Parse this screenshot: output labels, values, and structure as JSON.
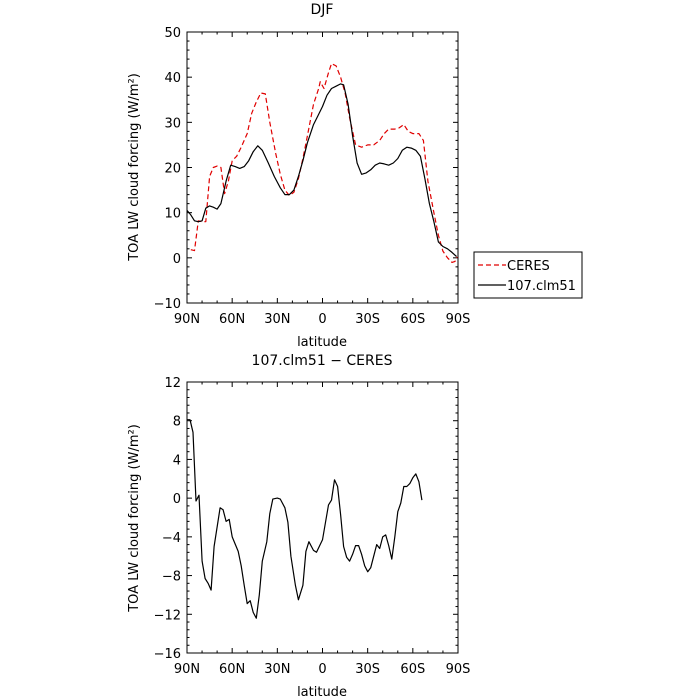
{
  "chart_data": [
    {
      "type": "line",
      "title": "DJF",
      "xlabel": "latitude",
      "ylabel": "TOA LW cloud forcing (W/m²)",
      "xlim": [
        90,
        -90
      ],
      "ylim": [
        -10,
        50
      ],
      "xticks": [
        90,
        60,
        30,
        0,
        -30,
        -60,
        -90
      ],
      "xtick_labels": [
        "90N",
        "60N",
        "30N",
        "0",
        "30S",
        "60S",
        "90S"
      ],
      "yticks": [
        -10,
        0,
        10,
        20,
        30,
        40,
        50
      ],
      "ytick_labels": [
        "−10",
        "0",
        "10",
        "20",
        "30",
        "40",
        "50"
      ],
      "legend": {
        "placement": "right-bottom"
      },
      "series": [
        {
          "name": "CERES",
          "color": "#e00000",
          "dash": "dashed",
          "points": [
            [
              87.5,
              1.8
            ],
            [
              85,
              1.6
            ],
            [
              82.5,
              8.2
            ],
            [
              80,
              8
            ],
            [
              77.5,
              8
            ],
            [
              75,
              18
            ],
            [
              72.5,
              20
            ],
            [
              70,
              20.3
            ],
            [
              67.5,
              20
            ],
            [
              65,
              14.2
            ],
            [
              62.5,
              17
            ],
            [
              60,
              21.5
            ],
            [
              57,
              22.5
            ],
            [
              54,
              24.5
            ],
            [
              50,
              27.5
            ],
            [
              47,
              32
            ],
            [
              44,
              34.5
            ],
            [
              41,
              36.5
            ],
            [
              38,
              36.3
            ],
            [
              35,
              30
            ],
            [
              31,
              23
            ],
            [
              28,
              18.5
            ],
            [
              25,
              15
            ],
            [
              22,
              13.8
            ],
            [
              19,
              14.5
            ],
            [
              16,
              17.5
            ],
            [
              13,
              22
            ],
            [
              10,
              27
            ],
            [
              6,
              34
            ],
            [
              2.5,
              37.5
            ],
            [
              1.5,
              39
            ],
            [
              -1,
              37.5
            ],
            [
              -4,
              41
            ],
            [
              -6,
              43
            ],
            [
              -9,
              42.5
            ],
            [
              -12,
              40
            ],
            [
              -15,
              36.5
            ],
            [
              -18,
              31
            ],
            [
              -22,
              25
            ],
            [
              -26,
              24.5
            ],
            [
              -30,
              25
            ],
            [
              -34,
              25
            ],
            [
              -38,
              26
            ],
            [
              -41,
              27.5
            ],
            [
              -44,
              28.5
            ],
            [
              -48,
              28.5
            ],
            [
              -51,
              28.8
            ],
            [
              -54,
              29.5
            ],
            [
              -57,
              28
            ],
            [
              -60,
              27.5
            ],
            [
              -64,
              27.5
            ],
            [
              -67,
              26
            ],
            [
              -70,
              17
            ],
            [
              -74,
              10
            ],
            [
              -77,
              5
            ],
            [
              -80,
              1.5
            ],
            [
              -83,
              0
            ],
            [
              -86,
              -1
            ],
            [
              -88,
              -0.8
            ],
            [
              -89.5,
              0.2
            ]
          ]
        },
        {
          "name": "107.clm51",
          "color": "#000000",
          "dash": "solid",
          "points": [
            [
              90,
              10.5
            ],
            [
              87.5,
              9.5
            ],
            [
              85,
              8.2
            ],
            [
              82.5,
              8
            ],
            [
              80,
              8.2
            ],
            [
              77.5,
              11
            ],
            [
              75,
              11.5
            ],
            [
              72.5,
              11.2
            ],
            [
              70,
              10.8
            ],
            [
              67.5,
              12
            ],
            [
              64,
              17
            ],
            [
              61,
              20.5
            ],
            [
              58,
              20.2
            ],
            [
              55,
              19.8
            ],
            [
              52,
              20.2
            ],
            [
              49,
              21.5
            ],
            [
              46,
              23.5
            ],
            [
              43,
              24.8
            ],
            [
              40,
              23.8
            ],
            [
              36,
              21
            ],
            [
              32,
              18
            ],
            [
              28,
              15.5
            ],
            [
              25,
              14
            ],
            [
              22,
              14
            ],
            [
              19,
              15
            ],
            [
              16,
              18
            ],
            [
              13,
              21.5
            ],
            [
              10,
              25.5
            ],
            [
              6,
              29.5
            ],
            [
              3,
              31.5
            ],
            [
              0,
              33.5
            ],
            [
              -3,
              36
            ],
            [
              -6,
              37.5
            ],
            [
              -9,
              38
            ],
            [
              -12,
              38.5
            ],
            [
              -14,
              38.3
            ],
            [
              -17,
              34
            ],
            [
              -20,
              27
            ],
            [
              -23,
              21
            ],
            [
              -26,
              18.5
            ],
            [
              -29,
              18.8
            ],
            [
              -32,
              19.5
            ],
            [
              -35,
              20.5
            ],
            [
              -38,
              21
            ],
            [
              -41,
              20.8
            ],
            [
              -44,
              20.5
            ],
            [
              -47,
              21
            ],
            [
              -50,
              22
            ],
            [
              -53,
              23.8
            ],
            [
              -56,
              24.5
            ],
            [
              -59,
              24.3
            ],
            [
              -62,
              23.8
            ],
            [
              -65,
              22.5
            ],
            [
              -68,
              17.5
            ],
            [
              -71,
              12
            ],
            [
              -74,
              8
            ],
            [
              -77,
              3.5
            ],
            [
              -80,
              2.5
            ],
            [
              -83,
              2
            ],
            [
              -86,
              1.2
            ],
            [
              -89,
              0.3
            ]
          ]
        }
      ]
    },
    {
      "type": "line",
      "title": "107.clm51 − CERES",
      "xlabel": "latitude",
      "ylabel": "TOA LW cloud forcing (W/m²)",
      "xlim": [
        90,
        -90
      ],
      "ylim": [
        -16,
        12
      ],
      "xticks": [
        90,
        60,
        30,
        0,
        -30,
        -60,
        -90
      ],
      "xtick_labels": [
        "90N",
        "60N",
        "30N",
        "0",
        "30S",
        "60S",
        "90S"
      ],
      "yticks": [
        -16,
        -12,
        -8,
        -4,
        0,
        4,
        8,
        12
      ],
      "ytick_labels": [
        "−16",
        "−12",
        "−8",
        "−4",
        "0",
        "4",
        "8",
        "12"
      ],
      "series": [
        {
          "color": "#000000",
          "dash": "solid",
          "points": [
            [
              90,
              8.1
            ],
            [
              88,
              8.1
            ],
            [
              86,
              6.8
            ],
            [
              84,
              -0.3
            ],
            [
              82,
              0.3
            ],
            [
              80,
              -6.5
            ],
            [
              78,
              -8.3
            ],
            [
              76,
              -8.8
            ],
            [
              74,
              -9.5
            ],
            [
              72,
              -5
            ],
            [
              68,
              -1
            ],
            [
              66,
              -1.2
            ],
            [
              64,
              -2.4
            ],
            [
              62,
              -2.2
            ],
            [
              60,
              -4
            ],
            [
              56,
              -5.5
            ],
            [
              54,
              -7
            ],
            [
              52,
              -9
            ],
            [
              50,
              -10.9
            ],
            [
              48,
              -10.6
            ],
            [
              46,
              -11.8
            ],
            [
              44,
              -12.4
            ],
            [
              42,
              -10
            ],
            [
              40,
              -6.5
            ],
            [
              37,
              -4.5
            ],
            [
              35,
              -1.6
            ],
            [
              33,
              -0.1
            ],
            [
              30,
              0
            ],
            [
              28,
              -0.1
            ],
            [
              25,
              -1
            ],
            [
              23,
              -2.5
            ],
            [
              21,
              -6
            ],
            [
              18,
              -9
            ],
            [
              16,
              -10.5
            ],
            [
              13,
              -9
            ],
            [
              11,
              -5.5
            ],
            [
              9,
              -4.5
            ],
            [
              6,
              -5.4
            ],
            [
              4,
              -5.6
            ],
            [
              0,
              -4.3
            ],
            [
              -2,
              -2.5
            ],
            [
              -4,
              -0.7
            ],
            [
              -6,
              -0.2
            ],
            [
              -8,
              1.9
            ],
            [
              -10,
              1.2
            ],
            [
              -12,
              -1.7
            ],
            [
              -14,
              -5
            ],
            [
              -16,
              -6.1
            ],
            [
              -18,
              -6.5
            ],
            [
              -20,
              -5.8
            ],
            [
              -22,
              -4.9
            ],
            [
              -24,
              -4.9
            ],
            [
              -26,
              -5.8
            ],
            [
              -28,
              -7
            ],
            [
              -30,
              -7.6
            ],
            [
              -32,
              -7.2
            ],
            [
              -34,
              -6
            ],
            [
              -36,
              -4.8
            ],
            [
              -38,
              -5.2
            ],
            [
              -40,
              -4
            ],
            [
              -42,
              -3.8
            ],
            [
              -44,
              -4.9
            ],
            [
              -46,
              -6.3
            ],
            [
              -48,
              -4
            ],
            [
              -50,
              -1.4
            ],
            [
              -52,
              -0.5
            ],
            [
              -54,
              1.2
            ],
            [
              -56,
              1.2
            ],
            [
              -58,
              1.5
            ],
            [
              -60,
              2.1
            ],
            [
              -62,
              2.5
            ],
            [
              -64,
              1.7
            ],
            [
              -66,
              -0.2
            ]
          ]
        }
      ]
    }
  ]
}
